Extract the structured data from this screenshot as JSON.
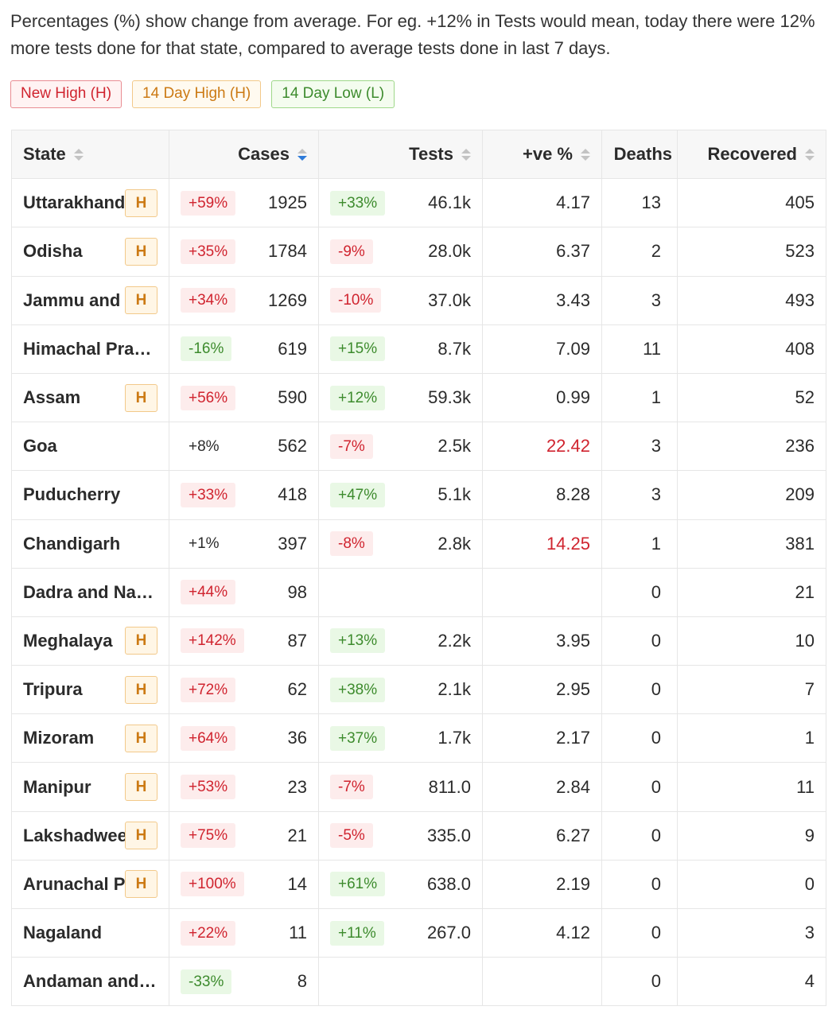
{
  "intro": {
    "text": "Percentages (%) show change from average. For eg. +12% in Tests would mean, today there were 12% more tests done for that state, compared to average tests done in last 7 days."
  },
  "legend": [
    {
      "label": "New High (H)",
      "tone": "red"
    },
    {
      "label": "14 Day High (H)",
      "tone": "orange"
    },
    {
      "label": "14 Day Low (L)",
      "tone": "green"
    }
  ],
  "table": {
    "columns": {
      "state": "State",
      "cases": "Cases",
      "tests": "Tests",
      "positivity": "+ve %",
      "deaths": "Deaths",
      "recovered": "Recovered"
    },
    "sorted_column": "cases",
    "sort_direction": "descending",
    "rows": [
      {
        "state": "Uttarakhand",
        "badge": "H",
        "cases_change": "+59%",
        "cases_tone": "red",
        "cases": "1925",
        "tests_change": "+33%",
        "tests_tone": "green",
        "tests": "46.1k",
        "positivity": "4.17",
        "positivity_hot": false,
        "deaths": "13",
        "recovered": "405"
      },
      {
        "state": "Odisha",
        "badge": "H",
        "cases_change": "+35%",
        "cases_tone": "red",
        "cases": "1784",
        "tests_change": "-9%",
        "tests_tone": "red",
        "tests": "28.0k",
        "positivity": "6.37",
        "positivity_hot": false,
        "deaths": "2",
        "recovered": "523"
      },
      {
        "state": "Jammu and",
        "badge": "H",
        "cases_change": "+34%",
        "cases_tone": "red",
        "cases": "1269",
        "tests_change": "-10%",
        "tests_tone": "red",
        "tests": "37.0k",
        "positivity": "3.43",
        "positivity_hot": false,
        "deaths": "3",
        "recovered": "493"
      },
      {
        "state": "Himachal Pra…",
        "badge": "",
        "cases_change": "-16%",
        "cases_tone": "green",
        "cases": "619",
        "tests_change": "+15%",
        "tests_tone": "green",
        "tests": "8.7k",
        "positivity": "7.09",
        "positivity_hot": false,
        "deaths": "11",
        "recovered": "408"
      },
      {
        "state": "Assam",
        "badge": "H",
        "cases_change": "+56%",
        "cases_tone": "red",
        "cases": "590",
        "tests_change": "+12%",
        "tests_tone": "green",
        "tests": "59.3k",
        "positivity": "0.99",
        "positivity_hot": false,
        "deaths": "1",
        "recovered": "52"
      },
      {
        "state": "Goa",
        "badge": "",
        "cases_change": "+8%",
        "cases_tone": "plain",
        "cases": "562",
        "tests_change": "-7%",
        "tests_tone": "red",
        "tests": "2.5k",
        "positivity": "22.42",
        "positivity_hot": true,
        "deaths": "3",
        "recovered": "236"
      },
      {
        "state": "Puducherry",
        "badge": "",
        "cases_change": "+33%",
        "cases_tone": "red",
        "cases": "418",
        "tests_change": "+47%",
        "tests_tone": "green",
        "tests": "5.1k",
        "positivity": "8.28",
        "positivity_hot": false,
        "deaths": "3",
        "recovered": "209"
      },
      {
        "state": "Chandigarh",
        "badge": "",
        "cases_change": "+1%",
        "cases_tone": "plain",
        "cases": "397",
        "tests_change": "-8%",
        "tests_tone": "red",
        "tests": "2.8k",
        "positivity": "14.25",
        "positivity_hot": true,
        "deaths": "1",
        "recovered": "381"
      },
      {
        "state": "Dadra and Na…",
        "badge": "",
        "cases_change": "+44%",
        "cases_tone": "red",
        "cases": "98",
        "tests_change": "",
        "tests_tone": "none",
        "tests": "",
        "positivity": "",
        "positivity_hot": false,
        "deaths": "0",
        "recovered": "21"
      },
      {
        "state": "Meghalaya",
        "badge": "H",
        "cases_change": "+142%",
        "cases_tone": "red",
        "cases": "87",
        "tests_change": "+13%",
        "tests_tone": "green",
        "tests": "2.2k",
        "positivity": "3.95",
        "positivity_hot": false,
        "deaths": "0",
        "recovered": "10"
      },
      {
        "state": "Tripura",
        "badge": "H",
        "cases_change": "+72%",
        "cases_tone": "red",
        "cases": "62",
        "tests_change": "+38%",
        "tests_tone": "green",
        "tests": "2.1k",
        "positivity": "2.95",
        "positivity_hot": false,
        "deaths": "0",
        "recovered": "7"
      },
      {
        "state": "Mizoram",
        "badge": "H",
        "cases_change": "+64%",
        "cases_tone": "red",
        "cases": "36",
        "tests_change": "+37%",
        "tests_tone": "green",
        "tests": "1.7k",
        "positivity": "2.17",
        "positivity_hot": false,
        "deaths": "0",
        "recovered": "1"
      },
      {
        "state": "Manipur",
        "badge": "H",
        "cases_change": "+53%",
        "cases_tone": "red",
        "cases": "23",
        "tests_change": "-7%",
        "tests_tone": "red",
        "tests": "811.0",
        "positivity": "2.84",
        "positivity_hot": false,
        "deaths": "0",
        "recovered": "11"
      },
      {
        "state": "Lakshadweep",
        "badge": "H",
        "cases_change": "+75%",
        "cases_tone": "red",
        "cases": "21",
        "tests_change": "-5%",
        "tests_tone": "red",
        "tests": "335.0",
        "positivity": "6.27",
        "positivity_hot": false,
        "deaths": "0",
        "recovered": "9"
      },
      {
        "state": "Arunachal P",
        "badge": "H",
        "cases_change": "+100%",
        "cases_tone": "red",
        "cases": "14",
        "tests_change": "+61%",
        "tests_tone": "green",
        "tests": "638.0",
        "positivity": "2.19",
        "positivity_hot": false,
        "deaths": "0",
        "recovered": "0"
      },
      {
        "state": "Nagaland",
        "badge": "",
        "cases_change": "+22%",
        "cases_tone": "red",
        "cases": "11",
        "tests_change": "+11%",
        "tests_tone": "green",
        "tests": "267.0",
        "positivity": "4.12",
        "positivity_hot": false,
        "deaths": "0",
        "recovered": "3"
      },
      {
        "state": "Andaman and…",
        "badge": "",
        "cases_change": "-33%",
        "cases_tone": "green",
        "cases": "8",
        "tests_change": "",
        "tests_tone": "none",
        "tests": "",
        "positivity": "",
        "positivity_hot": false,
        "deaths": "0",
        "recovered": "4"
      }
    ]
  },
  "colors": {
    "high_red": "#d0242f",
    "low_green": "#3d8b2d",
    "badge_orange": "#cc7a14",
    "sort_active": "#2f7bd9"
  }
}
